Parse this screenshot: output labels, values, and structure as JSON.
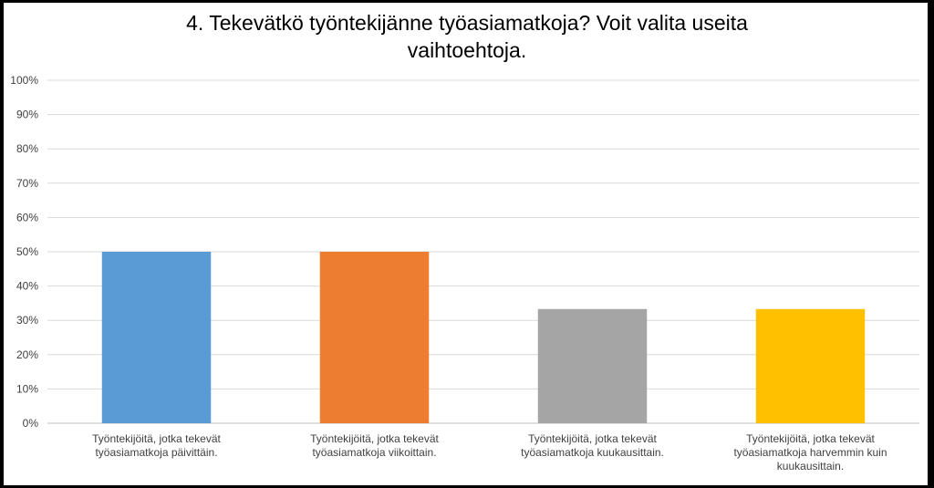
{
  "chart_data": {
    "type": "bar",
    "title_lines": [
      "4. Tekevätkö työntekijänne työasiamatkoja? Voit valita useita",
      "vaihtoehtoja."
    ],
    "categories": [
      [
        "Työntekijöitä, jotka tekevät",
        "työasiamatkoja päivittäin."
      ],
      [
        "Työntekijöitä, jotka tekevät",
        "työasiamatkoja viikoittain."
      ],
      [
        "Työntekijöitä, jotka tekevät",
        "työasiamatkoja kuukausittain."
      ],
      [
        "Työntekijöitä, jotka tekevät",
        "työasiamatkoja harvemmin kuin",
        "kuukausittain."
      ]
    ],
    "values": [
      0.5,
      0.5,
      0.333,
      0.333
    ],
    "bar_colors": [
      "#5b9bd5",
      "#ed7d31",
      "#a5a5a5",
      "#ffc000"
    ],
    "ylim": [
      0,
      1
    ],
    "yticks": [
      "0%",
      "10%",
      "20%",
      "30%",
      "40%",
      "50%",
      "60%",
      "70%",
      "80%",
      "90%",
      "100%"
    ],
    "grid": true,
    "legend": "none"
  }
}
